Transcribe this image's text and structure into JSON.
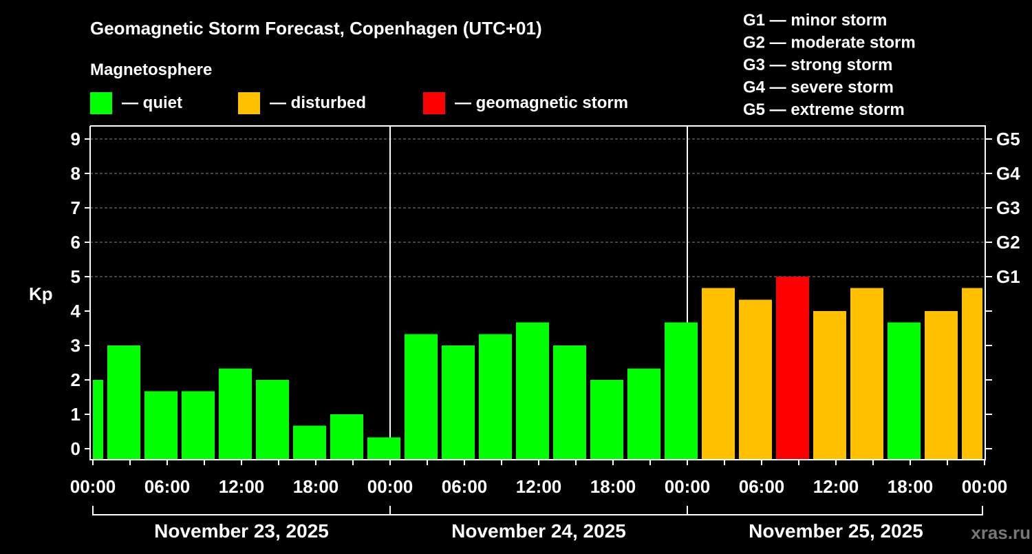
{
  "chart_data": {
    "type": "bar",
    "title": "Geomagnetic Storm Forecast, Copenhagen (UTC+01)",
    "legend_title": "Magnetosphere",
    "legend": [
      {
        "label": "— quiet",
        "color": "#00ff00"
      },
      {
        "label": "— disturbed",
        "color": "#ffc000"
      },
      {
        "label": "— geomagnetic storm",
        "color": "#ff0000"
      }
    ],
    "storm_scale": [
      "G1 — minor storm",
      "G2 — moderate storm",
      "G3 — strong storm",
      "G4 — severe storm",
      "G5 — extreme storm"
    ],
    "ylabel": "Kp",
    "ylim": [
      0,
      9
    ],
    "yticks": [
      "0",
      "1",
      "2",
      "3",
      "4",
      "5",
      "6",
      "7",
      "8",
      "9"
    ],
    "right_ticks": [
      {
        "kp": 5,
        "label": "G1"
      },
      {
        "kp": 6,
        "label": "G2"
      },
      {
        "kp": 7,
        "label": "G3"
      },
      {
        "kp": 8,
        "label": "G4"
      },
      {
        "kp": 9,
        "label": "G5"
      }
    ],
    "xtick_labels": [
      "00:00",
      "06:00",
      "12:00",
      "18:00",
      "00:00",
      "06:00",
      "12:00",
      "18:00",
      "00:00",
      "06:00",
      "12:00",
      "18:00",
      "00:00"
    ],
    "days": [
      "November 23, 2025",
      "November 24, 2025",
      "November 25, 2025"
    ],
    "interval_hours": 3,
    "values": [
      2,
      3,
      1.67,
      1.67,
      2.33,
      2,
      0.67,
      1,
      0.33,
      3.33,
      3,
      3.33,
      3.67,
      3,
      2,
      2.33,
      3.67,
      4.67,
      4.33,
      5,
      4,
      4.67,
      3.67,
      4,
      4.67
    ],
    "categories": [
      "quiet",
      "quiet",
      "quiet",
      "quiet",
      "quiet",
      "quiet",
      "quiet",
      "quiet",
      "quiet",
      "quiet",
      "quiet",
      "quiet",
      "quiet",
      "quiet",
      "quiet",
      "quiet",
      "quiet",
      "disturbed",
      "disturbed",
      "storm",
      "disturbed",
      "disturbed",
      "quiet",
      "disturbed",
      "disturbed"
    ],
    "colors": {
      "quiet": "#00ff00",
      "disturbed": "#ffc000",
      "storm": "#ff0000"
    },
    "grid": true
  },
  "watermark": "xras.ru"
}
